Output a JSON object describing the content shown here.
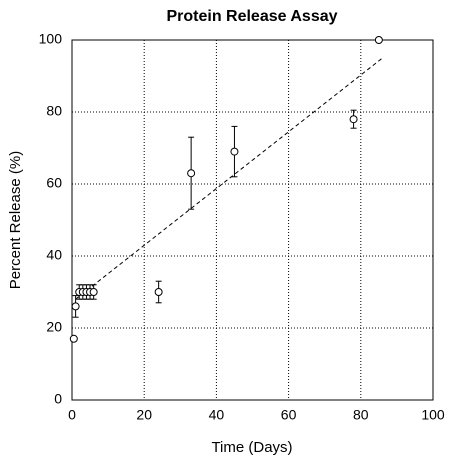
{
  "chart_data": {
    "type": "scatter",
    "title": "Protein Release Assay",
    "x_label": "Time (Days)",
    "y_label": "Percent Release (%)",
    "xlim": [
      0,
      100
    ],
    "ylim": [
      0,
      100
    ],
    "xticks": [
      0,
      20,
      40,
      60,
      80,
      100
    ],
    "yticks": [
      0,
      20,
      40,
      60,
      80,
      100
    ],
    "grid": true,
    "series": [
      {
        "color": "#000000",
        "x": [
          0.5,
          1,
          2,
          3,
          4,
          5,
          6,
          24,
          33,
          45,
          78,
          85
        ],
        "values": [
          17,
          26,
          30,
          30,
          30,
          30,
          30,
          30,
          63,
          69,
          78,
          100
        ],
        "errors": [
          0,
          3,
          2,
          2,
          2,
          2,
          2,
          3,
          10,
          7,
          2.5,
          0
        ]
      }
    ],
    "trendline": {
      "x": [
        1,
        86
      ],
      "y": [
        28,
        95
      ],
      "color": "#000000"
    }
  }
}
